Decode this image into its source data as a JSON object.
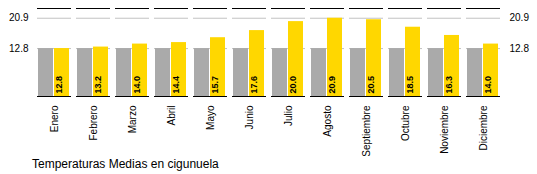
{
  "chart_data": {
    "type": "bar",
    "title": "Temperaturas Medias en cigunuela",
    "categories": [
      "Enero",
      "Febrero",
      "Marzo",
      "Abril",
      "Mayo",
      "Junio",
      "Julio",
      "Agosto",
      "Septiembre",
      "Octubre",
      "Noviembre",
      "Diciembre"
    ],
    "series": [
      {
        "color": "#AAAAAA",
        "values": [
          12.8,
          12.8,
          12.8,
          12.8,
          12.8,
          12.8,
          12.8,
          12.8,
          12.8,
          12.8,
          12.8,
          12.8
        ]
      },
      {
        "color": "#FFD700",
        "values": [
          12.8,
          13.2,
          14.0,
          14.4,
          15.7,
          17.6,
          20.0,
          20.9,
          20.5,
          18.5,
          16.3,
          14.0
        ],
        "value_labels": [
          "12.8",
          "13.2",
          "14.0",
          "14.4",
          "15.7",
          "17.6",
          "20.0",
          "20.9",
          "20.5",
          "18.5",
          "16.3",
          "14.0"
        ],
        "data_labels": true
      }
    ],
    "ylim": [
      0.0,
      23.5
    ],
    "yticks": [
      12.8,
      20.9
    ],
    "y2lim": [
      0.0,
      23.5
    ],
    "y2ticks": [
      12.8,
      20.9
    ],
    "grid": true
  }
}
